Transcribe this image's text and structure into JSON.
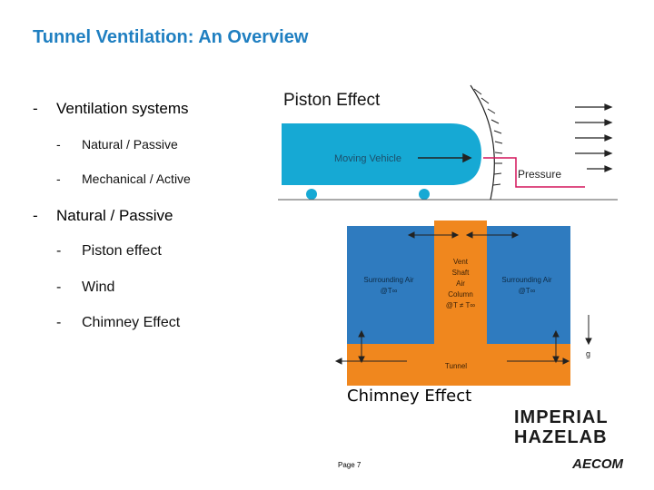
{
  "slide": {
    "title": "Tunnel Ventilation: An Overview",
    "page_label": "Page 7"
  },
  "bullets": {
    "systems": {
      "dash": "-",
      "label": "Ventilation systems",
      "items": [
        {
          "dash": "-",
          "label": "Natural / Passive"
        },
        {
          "dash": "-",
          "label": "Mechanical / Active"
        }
      ]
    },
    "natural": {
      "dash": "-",
      "label": "Natural / Passive",
      "items": [
        {
          "dash": "-",
          "label": "Piston effect"
        },
        {
          "dash": "-",
          "label": "Wind"
        },
        {
          "dash": "-",
          "label": "Chimney Effect"
        }
      ]
    }
  },
  "piston_figure": {
    "caption": "Piston Effect",
    "vehicle_label": "Moving Vehicle",
    "pressure_label": "Pressure",
    "colors": {
      "vehicle": "#16a9d4",
      "pressure": "#d4145a"
    }
  },
  "chimney_figure": {
    "caption": "Chimney Effect",
    "left_air": [
      "Surrounding Air",
      "@T∞"
    ],
    "right_air": [
      "Surrounding Air",
      "@T∞"
    ],
    "shaft": [
      "Vent",
      "Shaft",
      "Air",
      "Column",
      "@T ≠ T∞"
    ],
    "tunnel_label": "Tunnel",
    "gravity_label": "g",
    "colors": {
      "air": "#2f7bbf",
      "shaft": "#f0871e"
    }
  },
  "logos": {
    "imperial": "IMPERIAL",
    "haze_lab": "HAZELAB",
    "aecom": "AECOM"
  }
}
